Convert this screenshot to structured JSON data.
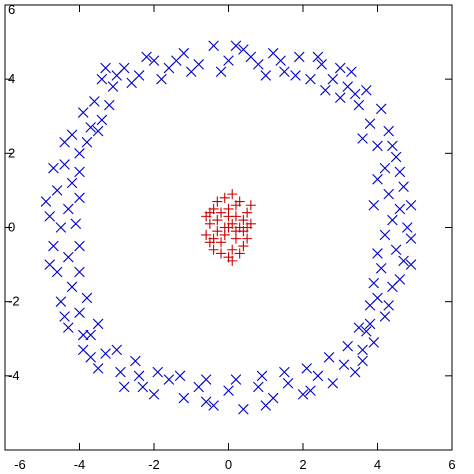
{
  "chart_data": {
    "type": "scatter",
    "title": "",
    "xlabel": "",
    "ylabel": "",
    "xlim": [
      -6,
      6
    ],
    "ylim": [
      -6,
      6
    ],
    "x_ticks": [
      -6,
      -4,
      -2,
      0,
      2,
      4,
      6
    ],
    "y_ticks": [
      -4,
      -2,
      0,
      2,
      4,
      6
    ],
    "x_tick_labels": [
      "-6",
      "-4",
      "-2",
      "0",
      "2",
      "4",
      "6"
    ],
    "y_tick_labels": [
      "-4",
      "-2",
      "0",
      "2",
      "4",
      "6"
    ],
    "grid": false,
    "legend": "none",
    "series": [
      {
        "marker": "x",
        "color": "#0000cc",
        "points": [
          [
            4.6,
            0.5
          ],
          [
            4.8,
            0.0
          ],
          [
            4.5,
            -0.6
          ],
          [
            4.9,
            -0.3
          ],
          [
            4.3,
            0.9
          ],
          [
            4.7,
            1.1
          ],
          [
            4.2,
            1.6
          ],
          [
            4.5,
            1.9
          ],
          [
            4.0,
            2.2
          ],
          [
            4.3,
            2.6
          ],
          [
            3.8,
            2.8
          ],
          [
            4.1,
            3.2
          ],
          [
            3.5,
            3.3
          ],
          [
            3.7,
            3.7
          ],
          [
            3.2,
            3.8
          ],
          [
            3.3,
            4.2
          ],
          [
            2.8,
            4.0
          ],
          [
            2.5,
            4.4
          ],
          [
            2.2,
            4.0
          ],
          [
            1.9,
            4.6
          ],
          [
            1.5,
            4.2
          ],
          [
            1.2,
            4.7
          ],
          [
            0.8,
            4.4
          ],
          [
            0.4,
            4.8
          ],
          [
            0.0,
            4.5
          ],
          [
            -0.4,
            4.9
          ],
          [
            -0.8,
            4.4
          ],
          [
            -1.2,
            4.7
          ],
          [
            -1.6,
            4.3
          ],
          [
            -2.0,
            4.5
          ],
          [
            -2.4,
            4.1
          ],
          [
            -2.8,
            4.3
          ],
          [
            -3.1,
            3.8
          ],
          [
            -3.4,
            4.0
          ],
          [
            -3.6,
            3.4
          ],
          [
            -3.9,
            3.1
          ],
          [
            -3.7,
            2.7
          ],
          [
            -4.2,
            2.5
          ],
          [
            -4.0,
            2.0
          ],
          [
            -4.4,
            1.7
          ],
          [
            -4.2,
            1.2
          ],
          [
            -4.6,
            1.0
          ],
          [
            -4.3,
            0.5
          ],
          [
            -4.8,
            0.3
          ],
          [
            -4.5,
            0.0
          ],
          [
            -4.7,
            -0.5
          ],
          [
            -4.3,
            -0.8
          ],
          [
            -4.6,
            -1.2
          ],
          [
            -4.2,
            -1.6
          ],
          [
            -4.5,
            -2.0
          ],
          [
            -4.0,
            -2.3
          ],
          [
            -4.3,
            -2.7
          ],
          [
            -3.7,
            -2.9
          ],
          [
            -3.9,
            -3.3
          ],
          [
            -3.3,
            -3.4
          ],
          [
            -3.5,
            -3.8
          ],
          [
            -2.9,
            -3.9
          ],
          [
            -2.8,
            -4.3
          ],
          [
            -2.4,
            -4.0
          ],
          [
            -2.0,
            -4.5
          ],
          [
            -1.6,
            -4.1
          ],
          [
            -1.2,
            -4.6
          ],
          [
            -0.8,
            -4.3
          ],
          [
            -0.4,
            -4.8
          ],
          [
            0.0,
            -4.4
          ],
          [
            0.4,
            -4.9
          ],
          [
            0.8,
            -4.3
          ],
          [
            1.2,
            -4.6
          ],
          [
            1.6,
            -4.2
          ],
          [
            2.0,
            -4.5
          ],
          [
            2.4,
            -4.0
          ],
          [
            2.8,
            -4.2
          ],
          [
            3.1,
            -3.7
          ],
          [
            3.4,
            -3.9
          ],
          [
            3.6,
            -3.3
          ],
          [
            3.9,
            -3.1
          ],
          [
            3.8,
            -2.6
          ],
          [
            4.2,
            -2.4
          ],
          [
            4.0,
            -1.9
          ],
          [
            4.4,
            -1.6
          ],
          [
            4.1,
            -1.1
          ],
          [
            4.7,
            -0.9
          ],
          [
            4.4,
            0.2
          ],
          [
            4.2,
            -0.2
          ],
          [
            3.9,
            0.6
          ],
          [
            4.0,
            1.3
          ],
          [
            3.6,
            2.4
          ],
          [
            3.0,
            3.5
          ],
          [
            2.6,
            3.7
          ],
          [
            1.8,
            4.1
          ],
          [
            1.0,
            4.1
          ],
          [
            0.6,
            4.6
          ],
          [
            -0.2,
            4.2
          ],
          [
            -1.0,
            4.2
          ],
          [
            -1.8,
            4.0
          ],
          [
            -2.6,
            3.9
          ],
          [
            -3.2,
            3.3
          ],
          [
            -3.5,
            2.6
          ],
          [
            -3.8,
            2.3
          ],
          [
            -4.0,
            1.5
          ],
          [
            -4.0,
            0.8
          ],
          [
            -4.1,
            0.1
          ],
          [
            -4.0,
            -0.5
          ],
          [
            -4.0,
            -1.2
          ],
          [
            -3.8,
            -1.9
          ],
          [
            -3.5,
            -2.6
          ],
          [
            -3.0,
            -3.3
          ],
          [
            -2.5,
            -3.6
          ],
          [
            -1.9,
            -3.9
          ],
          [
            -1.3,
            -4.0
          ],
          [
            -0.6,
            -4.1
          ],
          [
            0.2,
            -4.1
          ],
          [
            0.9,
            -4.0
          ],
          [
            1.5,
            -3.9
          ],
          [
            2.1,
            -3.8
          ],
          [
            2.7,
            -3.5
          ],
          [
            3.2,
            -3.2
          ],
          [
            3.5,
            -2.7
          ],
          [
            3.8,
            -2.1
          ],
          [
            3.9,
            -1.5
          ],
          [
            4.0,
            -0.7
          ],
          [
            4.9,
            0.6
          ],
          [
            4.6,
            -1.4
          ],
          [
            4.9,
            -1.0
          ],
          [
            -4.9,
            0.7
          ],
          [
            -4.8,
            -1.0
          ],
          [
            -4.7,
            1.6
          ],
          [
            -3.3,
            4.3
          ],
          [
            2.4,
            4.6
          ],
          [
            -2.2,
            4.6
          ],
          [
            0.2,
            4.9
          ],
          [
            -0.6,
            -4.7
          ],
          [
            1.0,
            -4.8
          ],
          [
            3.6,
            -3.6
          ],
          [
            -3.9,
            -2.9
          ],
          [
            -4.4,
            -2.4
          ],
          [
            -4.4,
            2.3
          ],
          [
            -3.0,
            4.1
          ],
          [
            3.0,
            4.3
          ],
          [
            4.4,
            2.2
          ],
          [
            4.6,
            1.5
          ],
          [
            4.3,
            -2.1
          ],
          [
            2.2,
            -4.4
          ],
          [
            -2.3,
            -4.3
          ],
          [
            -1.4,
            4.5
          ],
          [
            1.4,
            4.5
          ],
          [
            3.4,
            3.6
          ],
          [
            -3.7,
            -3.5
          ],
          [
            3.7,
            -2.8
          ],
          [
            -3.4,
            2.9
          ]
        ]
      },
      {
        "marker": "+",
        "color": "#cc0000",
        "points": [
          [
            0.0,
            0.0
          ],
          [
            0.2,
            0.3
          ],
          [
            -0.3,
            0.2
          ],
          [
            0.4,
            -0.1
          ],
          [
            -0.2,
            -0.4
          ],
          [
            0.1,
            -0.6
          ],
          [
            -0.5,
            0.1
          ],
          [
            0.5,
            0.4
          ],
          [
            -0.4,
            0.5
          ],
          [
            0.3,
            0.7
          ],
          [
            -0.1,
            0.8
          ],
          [
            0.6,
            0.1
          ],
          [
            -0.6,
            -0.2
          ],
          [
            0.2,
            -0.3
          ],
          [
            -0.3,
            -0.1
          ],
          [
            0.0,
            0.5
          ],
          [
            0.4,
            -0.5
          ],
          [
            -0.4,
            -0.6
          ],
          [
            0.1,
            0.1
          ],
          [
            -0.1,
            -0.2
          ],
          [
            0.3,
            0.0
          ],
          [
            -0.2,
            0.4
          ],
          [
            0.5,
            -0.3
          ],
          [
            -0.5,
            0.4
          ],
          [
            0.0,
            -0.8
          ],
          [
            0.2,
            0.6
          ],
          [
            -0.6,
            0.3
          ],
          [
            0.6,
            0.6
          ],
          [
            -0.3,
            0.7
          ],
          [
            0.1,
            -0.9
          ],
          [
            0.4,
            0.2
          ],
          [
            -0.1,
            0.0
          ],
          [
            0.2,
            -0.1
          ],
          [
            -0.4,
            -0.3
          ],
          [
            0.0,
            0.3
          ],
          [
            0.5,
            0.0
          ],
          [
            -0.2,
            -0.7
          ],
          [
            0.3,
            -0.7
          ],
          [
            -0.5,
            -0.4
          ],
          [
            0.1,
            0.9
          ]
        ]
      }
    ]
  }
}
